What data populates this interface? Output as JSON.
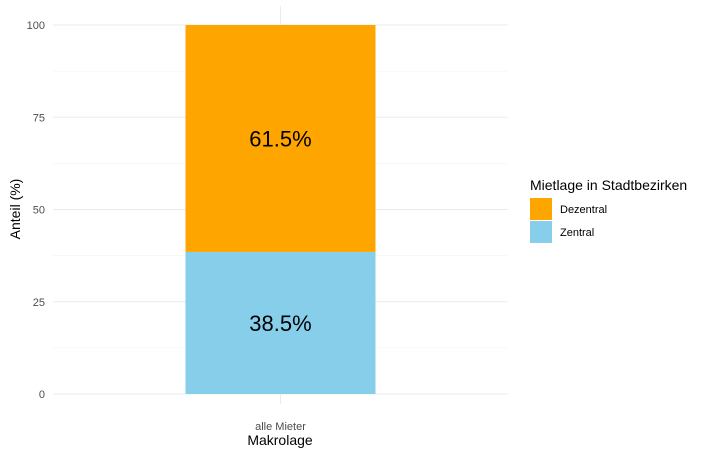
{
  "chart_data": {
    "type": "bar",
    "stacked": true,
    "categories": [
      "alle Mieter"
    ],
    "series": [
      {
        "name": "Zentral",
        "values": [
          38.5
        ],
        "color": "#87CEEB",
        "label": "38.5%"
      },
      {
        "name": "Dezentral",
        "values": [
          61.5
        ],
        "color": "#FFA500",
        "label": "61.5%"
      }
    ],
    "xlabel": "Makrolage",
    "ylabel": "Anteil (%)",
    "ylim": [
      0,
      100
    ],
    "yticks": [
      "0",
      "25",
      "50",
      "75",
      "100"
    ],
    "grid": true,
    "legend": {
      "title": "Mietlage in Stadtbezirken",
      "position": "right",
      "entries": [
        "Dezentral",
        "Zentral"
      ]
    }
  }
}
